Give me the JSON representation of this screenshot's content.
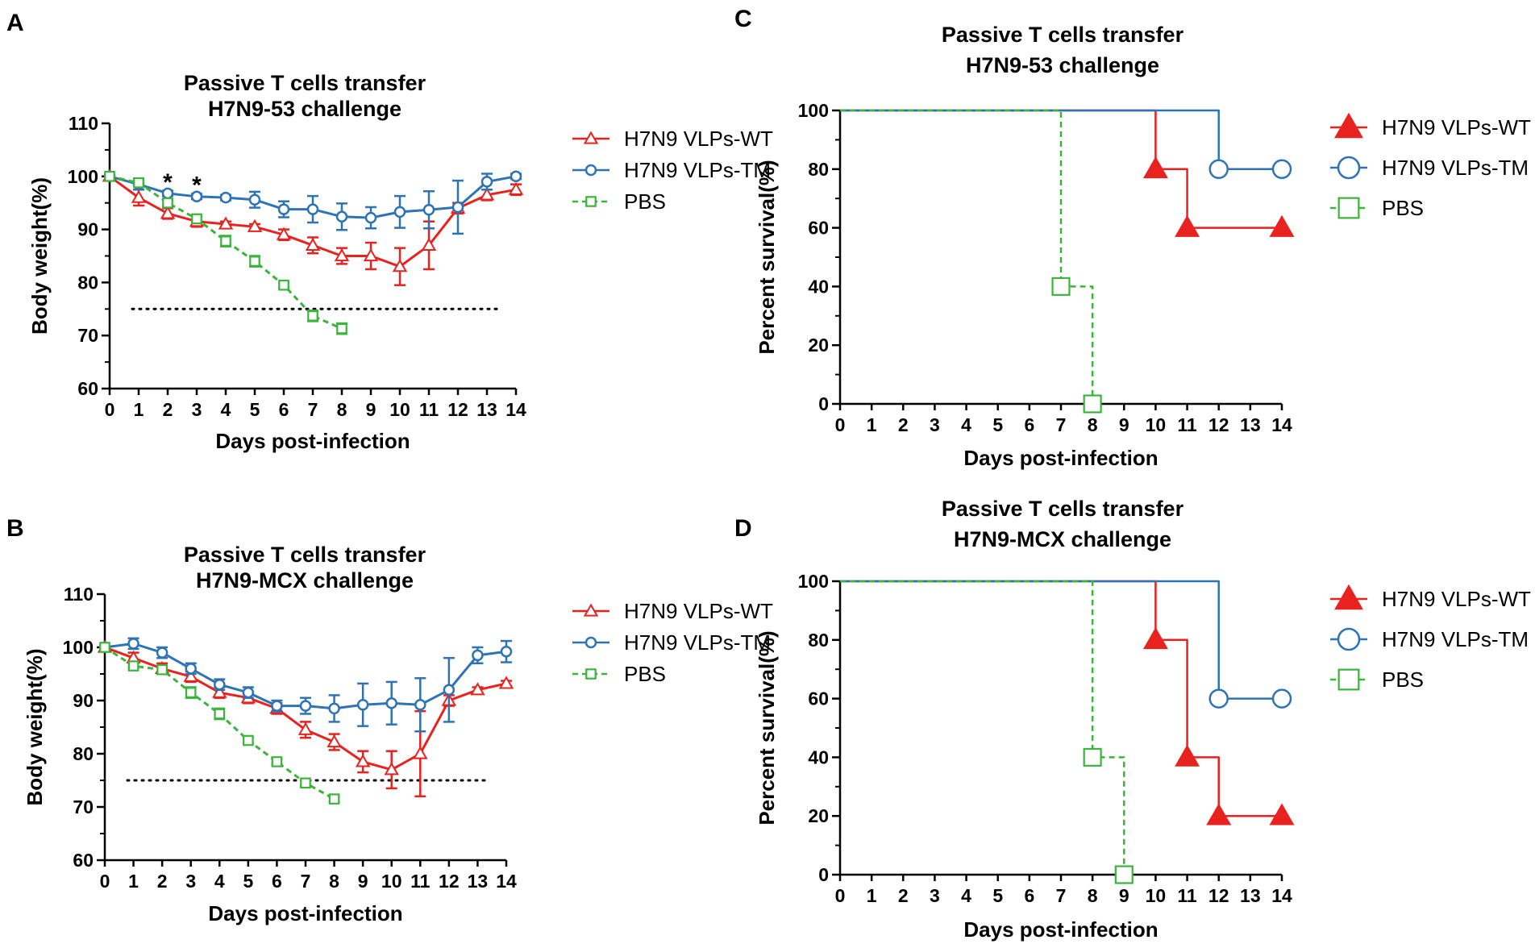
{
  "figure": {
    "panel_letters": [
      "A",
      "B",
      "C",
      "D"
    ],
    "series_colors": {
      "H7N9 VLPs-WT": "#e8221f",
      "H7N9 VLPs-TM": "#2e74b5",
      "PBS": "#3ab43a"
    }
  },
  "chart_data": [
    {
      "panel": "A",
      "type": "line",
      "title": [
        "Passive T cells transfer",
        "H7N9-53 challenge"
      ],
      "xlabel": "Days post-infection",
      "ylabel": "Body weight(%)",
      "xlim": [
        0,
        14
      ],
      "ylim": [
        60,
        110
      ],
      "xticks": [
        0,
        1,
        2,
        3,
        4,
        5,
        6,
        7,
        8,
        9,
        10,
        11,
        12,
        13,
        14
      ],
      "yticks": [
        60,
        70,
        80,
        90,
        100,
        110
      ],
      "threshold": 75,
      "annotations": [
        {
          "text": "*",
          "x": 2,
          "y": 99.5
        },
        {
          "text": "*",
          "x": 3,
          "y": 99
        }
      ],
      "legend": [
        "H7N9 VLPs-WT",
        "H7N9 VLPs-TM",
        "PBS"
      ],
      "series": [
        {
          "name": "H7N9 VLPs-WT",
          "marker": "triangle-open",
          "dash": false,
          "x": [
            0,
            1,
            2,
            3,
            4,
            5,
            6,
            7,
            8,
            9,
            10,
            11,
            12,
            13,
            14
          ],
          "y": [
            100,
            96,
            93,
            91.5,
            91,
            90.5,
            89,
            87,
            85,
            85,
            83,
            87,
            94,
            96.5,
            97.5
          ],
          "err": [
            0,
            1.5,
            1,
            1,
            0.5,
            0.5,
            1,
            1.5,
            1.5,
            2.5,
            3.5,
            4.5,
            1,
            1,
            1
          ]
        },
        {
          "name": "H7N9 VLPs-TM",
          "marker": "circle-open",
          "dash": false,
          "x": [
            0,
            1,
            2,
            3,
            4,
            5,
            6,
            7,
            8,
            9,
            10,
            11,
            12,
            13,
            14
          ],
          "y": [
            100,
            98.5,
            96.8,
            96.2,
            96,
            95.6,
            93.8,
            93.8,
            92.4,
            92.2,
            93.3,
            93.7,
            94.2,
            99,
            100
          ],
          "err": [
            0,
            1,
            0.5,
            0.5,
            0.5,
            1.5,
            1.5,
            2.5,
            2.5,
            2,
            3,
            3.5,
            5,
            1.5,
            0.5
          ]
        },
        {
          "name": "PBS",
          "marker": "square-open",
          "dash": true,
          "x": [
            0,
            1,
            2,
            3,
            4,
            5,
            6,
            7,
            8
          ],
          "y": [
            100,
            98.8,
            95,
            92,
            87.8,
            84,
            79.5,
            73.7,
            71.3
          ],
          "err": [
            0,
            0.5,
            0.5,
            0.5,
            1,
            1,
            0.5,
            1,
            1
          ]
        }
      ]
    },
    {
      "panel": "B",
      "type": "line",
      "title": [
        "Passive T cells transfer",
        "H7N9-MCX challenge"
      ],
      "xlabel": "Days post-infection",
      "ylabel": "Body weight(%)",
      "xlim": [
        0,
        14
      ],
      "ylim": [
        60,
        110
      ],
      "xticks": [
        0,
        1,
        2,
        3,
        4,
        5,
        6,
        7,
        8,
        9,
        10,
        11,
        12,
        13,
        14
      ],
      "yticks": [
        60,
        70,
        80,
        90,
        100,
        110
      ],
      "threshold": 75,
      "annotations": [],
      "legend": [
        "H7N9 VLPs-WT",
        "H7N9 VLPs-TM",
        "PBS"
      ],
      "series": [
        {
          "name": "H7N9 VLPs-WT",
          "marker": "triangle-open",
          "dash": false,
          "x": [
            0,
            1,
            2,
            3,
            4,
            5,
            6,
            7,
            8,
            9,
            10,
            11,
            12,
            13,
            14
          ],
          "y": [
            100,
            98,
            96,
            94.5,
            91.5,
            90.5,
            88.5,
            84.5,
            82.2,
            78.5,
            77,
            80,
            90,
            92,
            93.2
          ],
          "err": [
            0,
            1,
            1,
            1,
            1,
            1,
            1,
            1.5,
            1.5,
            2,
            3.5,
            8,
            1,
            0.5,
            0.5
          ]
        },
        {
          "name": "H7N9 VLPs-TM",
          "marker": "circle-open",
          "dash": false,
          "x": [
            0,
            1,
            2,
            3,
            4,
            5,
            6,
            7,
            8,
            9,
            10,
            11,
            12,
            13,
            14
          ],
          "y": [
            100,
            100.7,
            99,
            96,
            93,
            91.5,
            89,
            89,
            88.5,
            89.2,
            89.5,
            89.2,
            92,
            98.5,
            99.2
          ],
          "err": [
            0,
            1,
            1,
            1,
            1,
            1,
            1,
            1.5,
            2.5,
            4,
            4,
            5,
            6,
            1.5,
            2
          ]
        },
        {
          "name": "PBS",
          "marker": "square-open",
          "dash": true,
          "x": [
            0,
            1,
            2,
            3,
            4,
            5,
            6,
            7,
            8
          ],
          "y": [
            100,
            96.5,
            95.8,
            91.5,
            87.5,
            82.5,
            78.5,
            74.5,
            71.5
          ],
          "err": [
            0,
            0.5,
            0.5,
            1,
            1,
            0.5,
            0.5,
            0.5,
            0.5
          ]
        }
      ]
    },
    {
      "panel": "C",
      "type": "line",
      "subtype": "survival",
      "title": [
        "Passive T cells transfer",
        "H7N9-53 challenge"
      ],
      "xlabel": "Days post-infection",
      "ylabel": "Percent survival(%)",
      "xlim": [
        0,
        14
      ],
      "ylim": [
        0,
        100
      ],
      "xticks": [
        0,
        1,
        2,
        3,
        4,
        5,
        6,
        7,
        8,
        9,
        10,
        11,
        12,
        13,
        14
      ],
      "yticks": [
        0,
        20,
        40,
        60,
        80,
        100
      ],
      "legend": [
        "H7N9 VLPs-WT",
        "H7N9 VLPs-TM",
        "PBS"
      ],
      "series": [
        {
          "name": "H7N9 VLPs-WT",
          "marker": "triangle-filled",
          "dash": false,
          "x": [
            0,
            10,
            11,
            14
          ],
          "y": [
            100,
            80,
            60,
            60
          ]
        },
        {
          "name": "H7N9 VLPs-TM",
          "marker": "circle-open",
          "dash": false,
          "x": [
            0,
            12,
            14
          ],
          "y": [
            100,
            80,
            80
          ]
        },
        {
          "name": "PBS",
          "marker": "square-open",
          "dash": true,
          "x": [
            0,
            7,
            8
          ],
          "y": [
            100,
            40,
            0
          ]
        }
      ]
    },
    {
      "panel": "D",
      "type": "line",
      "subtype": "survival",
      "title": [
        "Passive T cells transfer",
        "H7N9-MCX challenge"
      ],
      "xlabel": "Days post-infection",
      "ylabel": "Percent survival(%)",
      "xlim": [
        0,
        14
      ],
      "ylim": [
        0,
        100
      ],
      "xticks": [
        0,
        1,
        2,
        3,
        4,
        5,
        6,
        7,
        8,
        9,
        10,
        11,
        12,
        13,
        14
      ],
      "yticks": [
        0,
        20,
        40,
        60,
        80,
        100
      ],
      "legend": [
        "H7N9 VLPs-WT",
        "H7N9 VLPs-TM",
        "PBS"
      ],
      "series": [
        {
          "name": "H7N9 VLPs-WT",
          "marker": "triangle-filled",
          "dash": false,
          "x": [
            0,
            10,
            11,
            12,
            14
          ],
          "y": [
            100,
            80,
            40,
            20,
            20
          ]
        },
        {
          "name": "H7N9 VLPs-TM",
          "marker": "circle-open",
          "dash": false,
          "x": [
            0,
            12,
            14
          ],
          "y": [
            100,
            60,
            60
          ]
        },
        {
          "name": "PBS",
          "marker": "square-open",
          "dash": true,
          "x": [
            0,
            8,
            9
          ],
          "y": [
            100,
            40,
            0
          ]
        }
      ]
    }
  ]
}
